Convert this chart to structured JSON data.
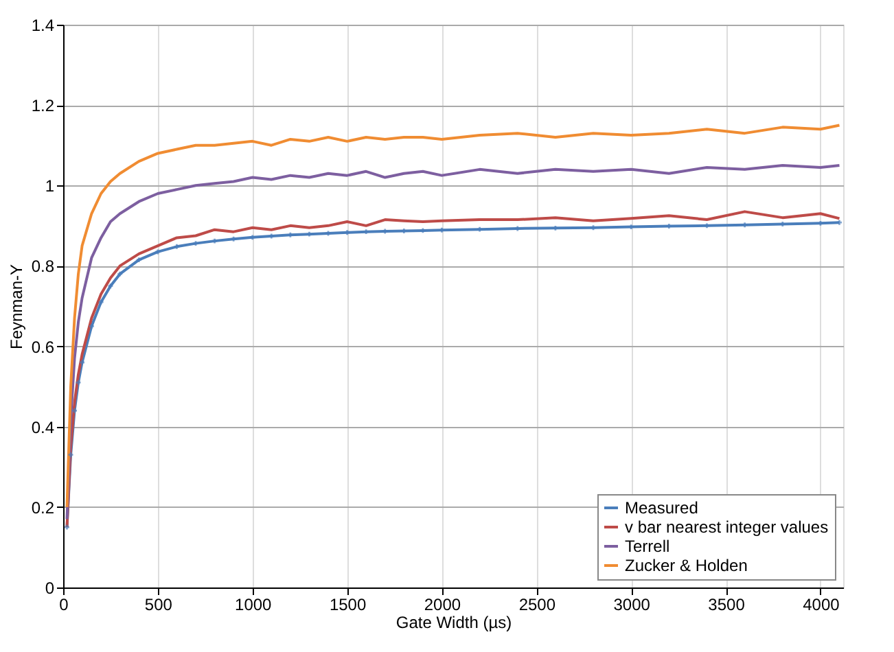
{
  "chart_data": {
    "type": "line",
    "xlabel": "Gate Width (µs)",
    "ylabel": "Feynman-Y",
    "x": [
      20,
      40,
      60,
      80,
      100,
      150,
      200,
      250,
      300,
      400,
      500,
      600,
      700,
      800,
      900,
      1000,
      1100,
      1200,
      1300,
      1400,
      1500,
      1600,
      1700,
      1800,
      1900,
      2000,
      2200,
      2400,
      2600,
      2800,
      3000,
      3200,
      3400,
      3600,
      3800,
      4000,
      4100
    ],
    "series": [
      {
        "name": "Measured",
        "color": "#4a7ebb",
        "marker": "cross",
        "values": [
          0.15,
          0.33,
          0.44,
          0.51,
          0.56,
          0.65,
          0.71,
          0.75,
          0.78,
          0.815,
          0.835,
          0.848,
          0.856,
          0.862,
          0.867,
          0.871,
          0.874,
          0.877,
          0.879,
          0.881,
          0.883,
          0.885,
          0.886,
          0.887,
          0.888,
          0.889,
          0.891,
          0.893,
          0.894,
          0.895,
          0.897,
          0.899,
          0.9,
          0.902,
          0.904,
          0.906,
          0.908
        ]
      },
      {
        "name": "v bar nearest integer values",
        "color": "#be4b48",
        "values": [
          0.15,
          0.35,
          0.46,
          0.53,
          0.58,
          0.67,
          0.73,
          0.77,
          0.8,
          0.83,
          0.85,
          0.87,
          0.875,
          0.89,
          0.885,
          0.895,
          0.89,
          0.9,
          0.895,
          0.9,
          0.91,
          0.9,
          0.915,
          0.912,
          0.91,
          0.912,
          0.915,
          0.915,
          0.92,
          0.912,
          0.918,
          0.925,
          0.915,
          0.935,
          0.92,
          0.93,
          0.918
        ]
      },
      {
        "name": "Terrell",
        "color": "#7d5fa0",
        "values": [
          0.17,
          0.42,
          0.57,
          0.66,
          0.72,
          0.82,
          0.87,
          0.91,
          0.93,
          0.96,
          0.98,
          0.99,
          1.0,
          1.005,
          1.01,
          1.02,
          1.015,
          1.025,
          1.02,
          1.03,
          1.025,
          1.035,
          1.02,
          1.03,
          1.035,
          1.025,
          1.04,
          1.03,
          1.04,
          1.035,
          1.04,
          1.03,
          1.045,
          1.04,
          1.05,
          1.045,
          1.05
        ]
      },
      {
        "name": "Zucker & Holden",
        "color": "#f08c32",
        "values": [
          0.2,
          0.5,
          0.67,
          0.78,
          0.85,
          0.93,
          0.98,
          1.01,
          1.03,
          1.06,
          1.08,
          1.09,
          1.1,
          1.1,
          1.105,
          1.11,
          1.1,
          1.115,
          1.11,
          1.12,
          1.11,
          1.12,
          1.115,
          1.12,
          1.12,
          1.115,
          1.125,
          1.13,
          1.12,
          1.13,
          1.125,
          1.13,
          1.14,
          1.13,
          1.145,
          1.14,
          1.15
        ]
      }
    ],
    "xlim": [
      0,
      4120
    ],
    "xticks": [
      0,
      500,
      1000,
      1500,
      2000,
      2500,
      3000,
      3500,
      4000
    ],
    "ylim": [
      0,
      1.4
    ],
    "yticks": [
      0,
      0.2,
      0.4,
      0.6,
      0.8,
      1,
      1.2,
      1.4
    ],
    "grid": true,
    "legend": "bottom right",
    "line_style": "solid"
  }
}
